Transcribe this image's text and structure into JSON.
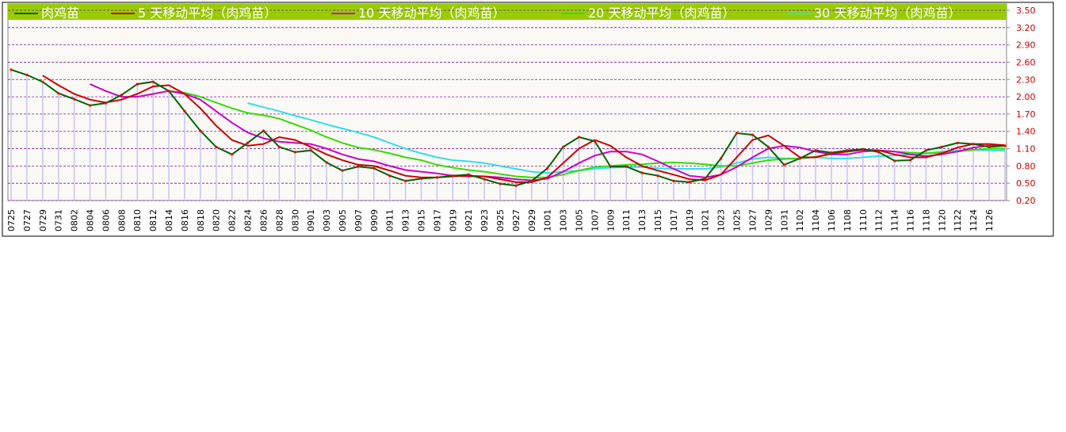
{
  "chart_data": {
    "type": "line",
    "categories": [
      "0725",
      "0727",
      "0729",
      "0731",
      "0802",
      "0804",
      "0806",
      "0808",
      "0810",
      "0812",
      "0814",
      "0816",
      "0818",
      "0820",
      "0822",
      "0824",
      "0826",
      "0828",
      "0830",
      "0901",
      "0903",
      "0905",
      "0907",
      "0909",
      "0911",
      "0913",
      "0915",
      "0917",
      "0919",
      "0921",
      "0923",
      "0925",
      "0927",
      "0929",
      "1001",
      "1003",
      "1005",
      "1007",
      "1009",
      "1011",
      "1013",
      "1015",
      "1017",
      "1019",
      "1021",
      "1023",
      "1025",
      "1027",
      "1029",
      "1031",
      "1102",
      "1104",
      "1106",
      "1108",
      "1110",
      "1112",
      "1114",
      "1116",
      "1118",
      "1120",
      "1122",
      "1124",
      "1126",
      null
    ],
    "series": [
      {
        "name": "肉鸡苗",
        "color": "#006400",
        "values": [
          2.47,
          2.38,
          2.26,
          2.06,
          1.96,
          1.85,
          1.89,
          2.03,
          2.22,
          2.26,
          2.1,
          1.75,
          1.41,
          1.13,
          1.0,
          1.2,
          1.41,
          1.13,
          1.04,
          1.07,
          0.86,
          0.72,
          0.79,
          0.76,
          0.63,
          0.54,
          0.58,
          0.6,
          0.63,
          0.65,
          0.57,
          0.49,
          0.46,
          0.54,
          0.76,
          1.13,
          1.3,
          1.23,
          0.79,
          0.79,
          0.68,
          0.63,
          0.54,
          0.52,
          0.58,
          0.93,
          1.37,
          1.34,
          1.13,
          0.82,
          0.93,
          1.07,
          1.03,
          1.07,
          1.09,
          1.04,
          0.89,
          0.9,
          1.07,
          1.13,
          1.2,
          1.18,
          1.13,
          1.15
        ]
      },
      {
        "name": "5 天移动平均（肉鸡苗）",
        "color": "#cc0000",
        "values": [
          null,
          null,
          2.37,
          2.2,
          2.05,
          1.95,
          1.9,
          1.95,
          2.05,
          2.18,
          2.2,
          2.05,
          1.8,
          1.5,
          1.25,
          1.15,
          1.18,
          1.3,
          1.25,
          1.13,
          1.0,
          0.9,
          0.82,
          0.8,
          0.72,
          0.63,
          0.6,
          0.6,
          0.62,
          0.63,
          0.62,
          0.57,
          0.52,
          0.52,
          0.6,
          0.85,
          1.1,
          1.25,
          1.15,
          0.95,
          0.8,
          0.72,
          0.65,
          0.57,
          0.55,
          0.65,
          0.95,
          1.25,
          1.33,
          1.15,
          0.95,
          0.95,
          1.02,
          1.05,
          1.08,
          1.07,
          1.0,
          0.95,
          0.95,
          1.02,
          1.12,
          1.18,
          1.18,
          1.16
        ]
      },
      {
        "name": "10 天移动平均（肉鸡苗）",
        "color": "#cc00cc",
        "values": [
          null,
          null,
          null,
          null,
          null,
          2.22,
          2.1,
          2.0,
          2.0,
          2.05,
          2.1,
          2.05,
          1.95,
          1.75,
          1.55,
          1.38,
          1.28,
          1.22,
          1.2,
          1.18,
          1.1,
          1.0,
          0.92,
          0.88,
          0.8,
          0.73,
          0.7,
          0.67,
          0.63,
          0.62,
          0.62,
          0.6,
          0.57,
          0.55,
          0.58,
          0.7,
          0.85,
          0.98,
          1.05,
          1.05,
          1.0,
          0.88,
          0.75,
          0.63,
          0.6,
          0.65,
          0.78,
          0.95,
          1.1,
          1.15,
          1.12,
          1.05,
          1.0,
          1.0,
          1.05,
          1.07,
          1.05,
          1.0,
          0.97,
          1.0,
          1.05,
          1.12,
          1.15,
          1.15
        ]
      },
      {
        "name": "20 天移动平均（肉鸡苗）",
        "color": "#33dd00",
        "values": [
          null,
          null,
          null,
          null,
          null,
          null,
          null,
          null,
          null,
          null,
          2.1,
          2.07,
          2.0,
          1.9,
          1.8,
          1.72,
          1.68,
          1.62,
          1.52,
          1.42,
          1.3,
          1.2,
          1.12,
          1.08,
          1.02,
          0.95,
          0.9,
          0.82,
          0.77,
          0.73,
          0.7,
          0.66,
          0.62,
          0.6,
          0.6,
          0.65,
          0.72,
          0.78,
          0.8,
          0.82,
          0.83,
          0.85,
          0.86,
          0.85,
          0.83,
          0.8,
          0.8,
          0.85,
          0.9,
          0.92,
          0.93,
          0.96,
          1.0,
          1.05,
          1.08,
          1.07,
          1.05,
          1.03,
          1.02,
          1.03,
          1.05,
          1.08,
          1.1,
          1.1
        ]
      },
      {
        "name": "30 天移动平均（肉鸡苗）",
        "color": "#33ddee",
        "values": [
          null,
          null,
          null,
          null,
          null,
          null,
          null,
          null,
          null,
          null,
          null,
          null,
          null,
          null,
          null,
          1.89,
          1.82,
          1.75,
          1.67,
          1.6,
          1.52,
          1.45,
          1.38,
          1.3,
          1.2,
          1.1,
          1.02,
          0.95,
          0.9,
          0.88,
          0.85,
          0.8,
          0.75,
          0.7,
          0.68,
          0.7,
          0.72,
          0.75,
          0.77,
          0.78,
          0.78,
          0.76,
          0.75,
          0.75,
          0.75,
          0.78,
          0.85,
          0.92,
          0.95,
          0.93,
          0.93,
          0.95,
          0.93,
          0.93,
          0.95,
          0.97,
          0.98,
          1.0,
          1.02,
          1.05,
          1.07,
          1.08,
          1.07,
          1.07
        ]
      }
    ],
    "ylim": [
      0.2,
      3.5
    ],
    "yticks": [
      {
        "value": 0.2,
        "label": "0.20"
      },
      {
        "value": 0.5,
        "label": "0.50"
      },
      {
        "value": 0.8,
        "label": "0.80"
      },
      {
        "value": 1.1,
        "label": "1.10"
      },
      {
        "value": 1.4,
        "label": "1.40"
      },
      {
        "value": 1.7,
        "label": "1.70"
      },
      {
        "value": 2.0,
        "label": "2.00"
      },
      {
        "value": 2.3,
        "label": "2.30"
      },
      {
        "value": 2.6,
        "label": "2.60"
      },
      {
        "value": 2.9,
        "label": "2.90"
      },
      {
        "value": 3.2,
        "label": "3.20"
      },
      {
        "value": 3.5,
        "label": "3.50"
      }
    ],
    "grid": true,
    "legend": "top"
  }
}
